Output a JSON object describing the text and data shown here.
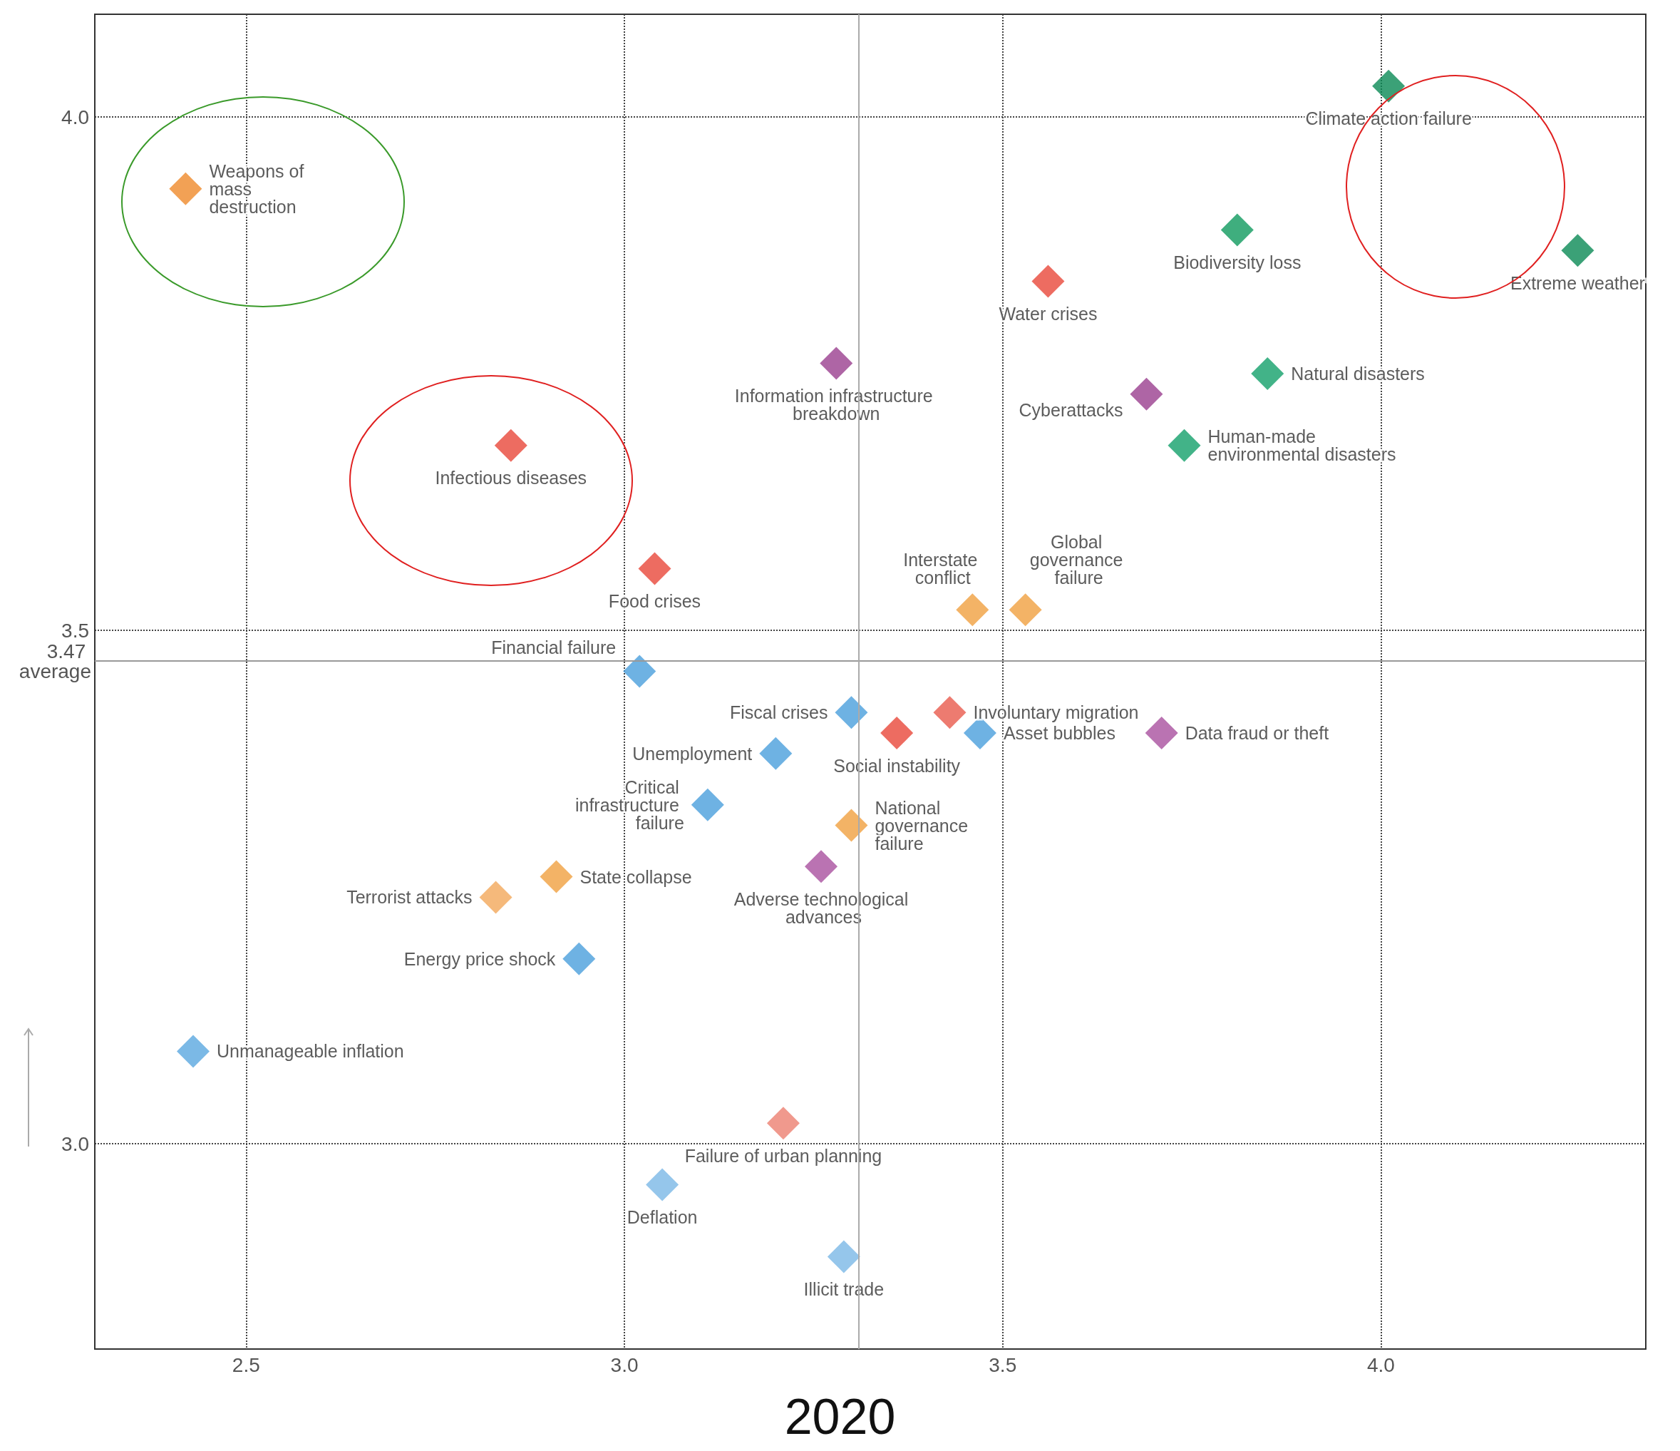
{
  "chart_data": {
    "type": "scatter",
    "title": "2020",
    "marker": "diamond",
    "grid": true,
    "xlim": [
      2.3,
      4.35
    ],
    "xticks": [
      2.5,
      {
        "value": 3,
        "label": "3.0"
      },
      3.5,
      {
        "value": 4,
        "label": "4.0"
      }
    ],
    "ylim": [
      2.8,
      4.1
    ],
    "yticks": [
      {
        "value": 3,
        "label": "3.0"
      },
      3.5,
      {
        "value": 4,
        "label": "4.0"
      }
    ],
    "x": [
      4.01,
      4.26,
      3.81,
      3.56,
      3.28,
      3.85,
      3.69,
      3.74,
      2.85,
      2.42,
      3.04,
      3.46,
      3.53,
      3.02,
      3.3,
      3.43,
      3.36,
      3.47,
      3.71,
      3.2,
      3.11,
      3.3,
      3.26,
      2.91,
      2.83,
      2.94,
      2.43,
      3.21,
      3.05,
      3.29
    ],
    "values": [
      4.03,
      3.87,
      3.89,
      3.84,
      3.76,
      3.75,
      3.73,
      3.68,
      3.68,
      3.93,
      3.56,
      3.52,
      3.52,
      3.46,
      3.42,
      3.42,
      3.4,
      3.4,
      3.4,
      3.38,
      3.33,
      3.31,
      3.27,
      3.26,
      3.24,
      3.18,
      3.09,
      3.02,
      2.96,
      2.89
    ],
    "colors": [
      "#0a8a55",
      "#0a8a55",
      "#0f9a5e",
      "#e8473a",
      "#9a3f8f",
      "#13a06a",
      "#9a3f8f",
      "#13a06a",
      "#e8473a",
      "#ef8a2a",
      "#e8473a",
      "#f0a040",
      "#f0a040",
      "#4a9fdc",
      "#4a9fdc",
      "#e85a4c",
      "#e8473a",
      "#4a9fdc",
      "#a9509f",
      "#4a9fdc",
      "#4a9fdc",
      "#f0a040",
      "#a9509f",
      "#f0a040",
      "#f2a85a",
      "#4a9fdc",
      "#5aa8e0",
      "#ec8070",
      "#7ab8e6",
      "#7ab8e6"
    ],
    "value_labels": [
      "Climate action failure",
      "Extreme weather",
      "Biodiversity loss",
      "Water crises",
      "Information infrastructure breakdown",
      "Natural disasters",
      "Cyberattacks",
      "Human-made environmental disasters",
      "Infectious diseases",
      "Weapons of mass destruction",
      "Food crises",
      "Interstate conflict",
      "Global governance failure",
      "Financial failure",
      "Fiscal crises",
      "Involuntary migration",
      "Social instability",
      "Asset bubbles",
      "Data fraud or theft",
      "Unemployment",
      "Critical infrastructure failure",
      "National governance failure",
      "Adverse technological advances",
      "State collapse",
      "Terrorist attacks",
      "Energy price shock",
      "Unmanageable inflation",
      "Failure of urban planning",
      "Deflation",
      "Illicit trade"
    ],
    "ref_lines": [
      {
        "axis": "y",
        "value": 3.47,
        "label": "3.47 average",
        "color": "#999999"
      },
      {
        "axis": "x",
        "value": 3.31,
        "label": null,
        "color": "#aaaaaa"
      }
    ]
  }
}
